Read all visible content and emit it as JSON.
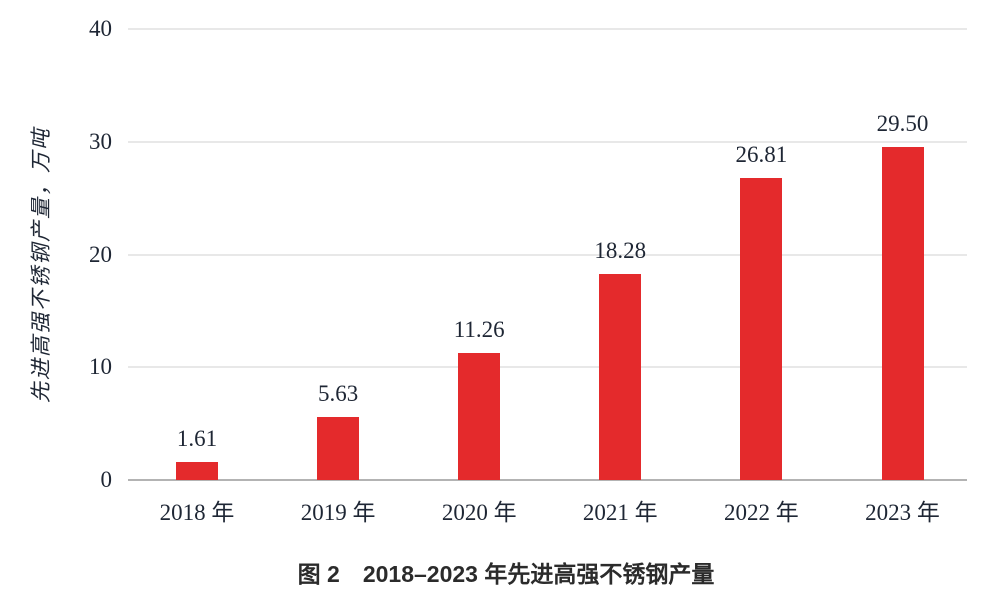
{
  "figure": {
    "caption": "图 2　2018–2023 年先进高强不锈钢产量"
  },
  "chart_data": {
    "type": "bar",
    "title": "图 2　2018–2023 年先进高强不锈钢产量",
    "categories": [
      "2018 年",
      "2019 年",
      "2020 年",
      "2021 年",
      "2022 年",
      "2023 年"
    ],
    "values": [
      1.61,
      5.63,
      11.26,
      18.28,
      26.81,
      29.5
    ],
    "value_labels": [
      "1.61",
      "5.63",
      "11.26",
      "18.28",
      "26.81",
      "29.50"
    ],
    "xlabel": "",
    "ylabel": "先进高强不锈钢产量，万吨",
    "ylim": [
      0,
      40
    ],
    "yticks": [
      0,
      10,
      20,
      30,
      40
    ],
    "grid": "horizontal gridlines on, legend none",
    "colors": {
      "bar": "#e42a2c",
      "gridline": "#e8e8e8",
      "axis_line": "#b3b3b3",
      "tick_text": "#1e2634",
      "caption_text": "#2b2b2b"
    }
  }
}
